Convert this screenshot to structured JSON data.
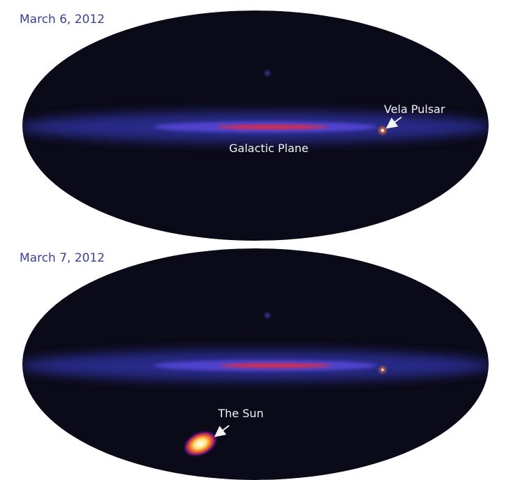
{
  "panels": [
    {
      "date": "March 6, 2012",
      "labels": [
        "Vela Pulsar",
        "Galactic Plane"
      ]
    },
    {
      "date": "March 7, 2012",
      "labels": [
        "The Sun"
      ]
    }
  ]
}
